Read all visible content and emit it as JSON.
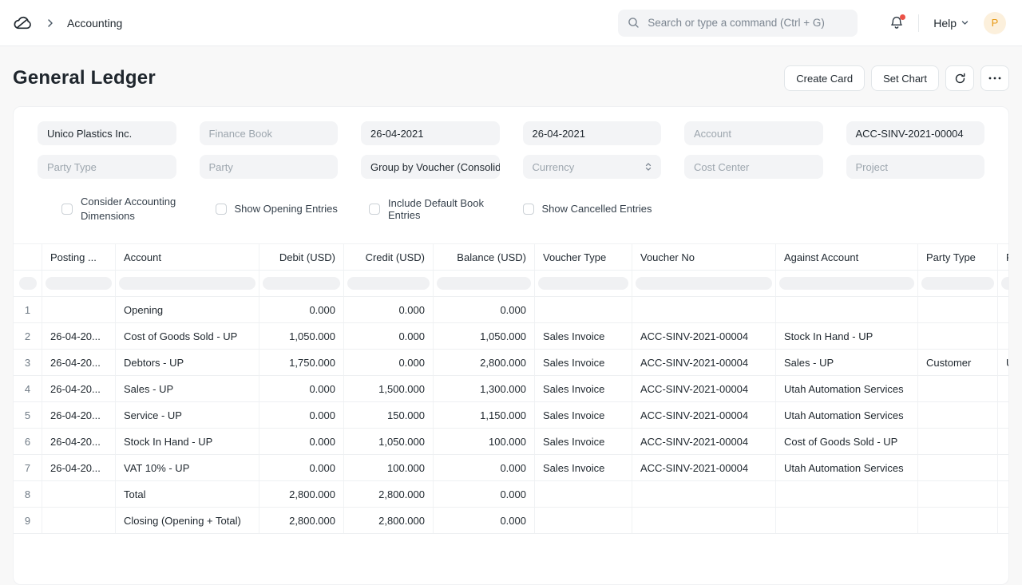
{
  "colors": {
    "notification_dot": "#eb5146",
    "avatar_bg": "#fcf0dc",
    "avatar_text": "#e79913"
  },
  "navbar": {
    "breadcrumb": "Accounting",
    "search_placeholder": "Search or type a command (Ctrl + G)",
    "help_label": "Help",
    "avatar_initial": "P"
  },
  "header": {
    "title": "General Ledger",
    "create_card_label": "Create Card",
    "set_chart_label": "Set Chart"
  },
  "filters": {
    "company": {
      "text": "Unico Plastics Inc."
    },
    "finance_book": {
      "placeholder": "Finance Book"
    },
    "from_date": {
      "text": "26-04-2021"
    },
    "to_date": {
      "text": "26-04-2021"
    },
    "account": {
      "placeholder": "Account"
    },
    "voucher_no": {
      "text": "ACC-SINV-2021-00004"
    },
    "party_type": {
      "placeholder": "Party Type"
    },
    "party": {
      "placeholder": "Party"
    },
    "group_by": {
      "text": "Group by Voucher (Consolidated)"
    },
    "currency": {
      "placeholder": "Currency"
    },
    "cost_center": {
      "placeholder": "Cost Center"
    },
    "project": {
      "placeholder": "Project"
    },
    "checkboxes": [
      "Consider Accounting Dimensions",
      "Show Opening Entries",
      "Include Default Book Entries",
      "Show Cancelled Entries"
    ]
  },
  "table": {
    "columns": [
      "",
      "Posting ...",
      "Account",
      "Debit (USD)",
      "Credit (USD)",
      "Balance (USD)",
      "Voucher Type",
      "Voucher No",
      "Against Account",
      "Party Type",
      "Party"
    ],
    "rows": [
      [
        "1",
        "",
        "Opening",
        "0.000",
        "0.000",
        "0.000",
        "",
        "",
        "",
        "",
        ""
      ],
      [
        "2",
        "26-04-20...",
        "Cost of Goods Sold - UP",
        "1,050.000",
        "0.000",
        "1,050.000",
        "Sales Invoice",
        "ACC-SINV-2021-00004",
        "Stock In Hand - UP",
        "",
        ""
      ],
      [
        "3",
        "26-04-20...",
        "Debtors - UP",
        "1,750.000",
        "0.000",
        "2,800.000",
        "Sales Invoice",
        "ACC-SINV-2021-00004",
        "Sales - UP",
        "Customer",
        "Utah Automation Services"
      ],
      [
        "4",
        "26-04-20...",
        "Sales - UP",
        "0.000",
        "1,500.000",
        "1,300.000",
        "Sales Invoice",
        "ACC-SINV-2021-00004",
        "Utah Automation Services",
        "",
        ""
      ],
      [
        "5",
        "26-04-20...",
        "Service - UP",
        "0.000",
        "150.000",
        "1,150.000",
        "Sales Invoice",
        "ACC-SINV-2021-00004",
        "Utah Automation Services",
        "",
        ""
      ],
      [
        "6",
        "26-04-20...",
        "Stock In Hand - UP",
        "0.000",
        "1,050.000",
        "100.000",
        "Sales Invoice",
        "ACC-SINV-2021-00004",
        "Cost of Goods Sold - UP",
        "",
        ""
      ],
      [
        "7",
        "26-04-20...",
        "VAT 10% - UP",
        "0.000",
        "100.000",
        "0.000",
        "Sales Invoice",
        "ACC-SINV-2021-00004",
        "Utah Automation Services",
        "",
        ""
      ],
      [
        "8",
        "",
        "Total",
        "2,800.000",
        "2,800.000",
        "0.000",
        "",
        "",
        "",
        "",
        ""
      ],
      [
        "9",
        "",
        "Closing (Opening + Total)",
        "2,800.000",
        "2,800.000",
        "0.000",
        "",
        "",
        "",
        "",
        ""
      ]
    ]
  }
}
